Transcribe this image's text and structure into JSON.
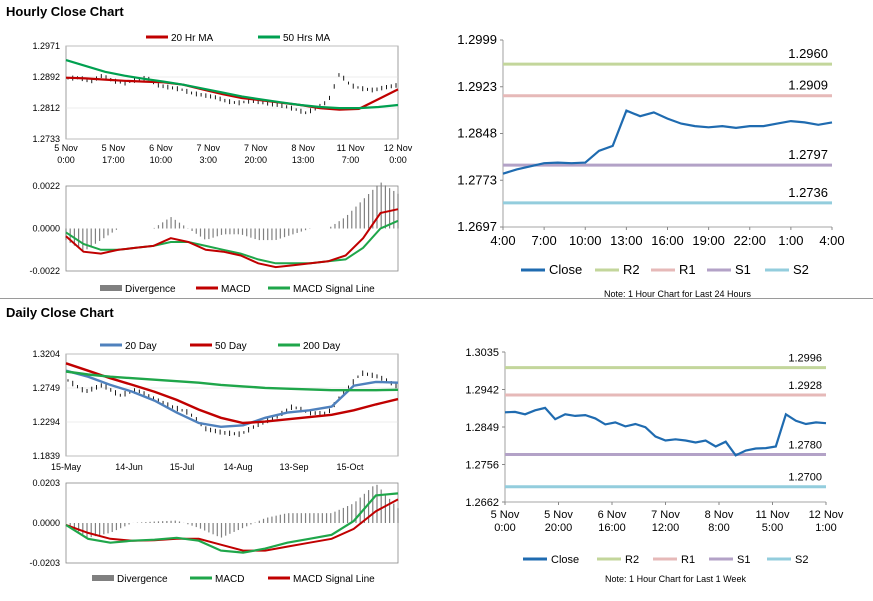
{
  "sections": {
    "hourly_title": "Hourly Close Chart",
    "daily_title": "Daily Close Chart"
  },
  "colors": {
    "close": "#1f6bb0",
    "r2": "#c3d69b",
    "r1": "#e6b9b8",
    "s1": "#b3a2c7",
    "s2": "#93cddd",
    "ma20": "#c00000",
    "ma50": "#00a050",
    "ma200": "#1fa64a",
    "day20": "#4f81bd",
    "macd_red": "#c00000",
    "macd_green": "#1fa64a",
    "bar": "#808080"
  },
  "chart_data": [
    {
      "id": "hourly_price",
      "type": "line",
      "xlabels": [
        [
          "5 Nov",
          "0:00"
        ],
        [
          "5 Nov",
          "17:00"
        ],
        [
          "6 Nov",
          "10:00"
        ],
        [
          "7 Nov",
          "3:00"
        ],
        [
          "7 Nov",
          "20:00"
        ],
        [
          "8 Nov",
          "13:00"
        ],
        [
          "11 Nov",
          "7:00"
        ],
        [
          "12 Nov",
          "0:00"
        ]
      ],
      "ylabels": [
        "1.2971",
        "1.2892",
        "1.2812",
        "1.2733"
      ],
      "ylim": [
        1.2733,
        1.2971
      ],
      "legend": [
        {
          "label": "20 Hr MA",
          "color": "#c00000"
        },
        {
          "label": "50 Hrs MA",
          "color": "#00a050"
        }
      ],
      "series": [
        {
          "name": "20 Hr MA",
          "color": "#c00000",
          "values": [
            1.289,
            1.2888,
            1.2885,
            1.2882,
            1.288,
            1.2878,
            1.2872,
            1.286,
            1.2848,
            1.2838,
            1.2832,
            1.2826,
            1.282,
            1.2812,
            1.2808,
            1.281,
            1.2835,
            1.286
          ]
        },
        {
          "name": "50 Hrs MA",
          "color": "#00a050",
          "values": [
            1.2935,
            1.292,
            1.2905,
            1.2895,
            1.2887,
            1.288,
            1.2872,
            1.2862,
            1.2852,
            1.2842,
            1.2834,
            1.2827,
            1.282,
            1.2815,
            1.2812,
            1.2812,
            1.2815,
            1.282
          ]
        }
      ],
      "ohlc_close": [
        1.2888,
        1.289,
        1.288,
        1.2895,
        1.2882,
        1.2876,
        1.2884,
        1.289,
        1.287,
        1.2865,
        1.286,
        1.285,
        1.2845,
        1.284,
        1.283,
        1.2825,
        1.283,
        1.2828,
        1.2822,
        1.2818,
        1.281,
        1.28,
        1.2812,
        1.283,
        1.29,
        1.287,
        1.2862,
        1.2858,
        1.2865,
        1.287
      ]
    },
    {
      "id": "hourly_macd",
      "type": "line",
      "ylabels": [
        "0.0022",
        "0.0000",
        "-0.0022"
      ],
      "ylim": [
        -0.0022,
        0.0022
      ],
      "legend": [
        {
          "label": "Divergence",
          "color": "#808080"
        },
        {
          "label": "MACD",
          "color": "#c00000"
        },
        {
          "label": "MACD Signal Line",
          "color": "#1fa64a"
        }
      ],
      "macd": [
        -0.0004,
        -0.0012,
        -0.0013,
        -0.0011,
        -0.001,
        -0.0009,
        -0.0005,
        -0.0007,
        -0.0011,
        -0.0012,
        -0.0014,
        -0.0018,
        -0.002,
        -0.0019,
        -0.0018,
        -0.0017,
        -0.0014,
        -0.0005,
        0.0008,
        0.001
      ],
      "signal": [
        -0.0002,
        -0.0008,
        -0.0011,
        -0.0011,
        -0.001,
        -0.0009,
        -0.0007,
        -0.0007,
        -0.0009,
        -0.0011,
        -0.0013,
        -0.0016,
        -0.0018,
        -0.0018,
        -0.0018,
        -0.0017,
        -0.0016,
        -0.001,
        0.0,
        0.0004
      ]
    },
    {
      "id": "hourly_24h",
      "type": "line",
      "xlabels": [
        "4:00",
        "7:00",
        "10:00",
        "13:00",
        "16:00",
        "19:00",
        "22:00",
        "1:00",
        "4:00"
      ],
      "ylabels": [
        "1.2999",
        "1.2923",
        "1.2848",
        "1.2773",
        "1.2697"
      ],
      "ylim": [
        1.2697,
        1.2999
      ],
      "levels": [
        {
          "name": "R2",
          "value": 1.296,
          "label": "1.2960",
          "color": "#c3d69b"
        },
        {
          "name": "R1",
          "value": 1.2909,
          "label": "1.2909",
          "color": "#e6b9b8"
        },
        {
          "name": "S1",
          "value": 1.2797,
          "label": "1.2797",
          "color": "#b3a2c7"
        },
        {
          "name": "S2",
          "value": 1.2736,
          "label": "1.2736",
          "color": "#93cddd"
        }
      ],
      "close": [
        1.2783,
        1.279,
        1.2795,
        1.28,
        1.2801,
        1.28,
        1.2801,
        1.282,
        1.2828,
        1.2885,
        1.2876,
        1.2882,
        1.2872,
        1.2864,
        1.286,
        1.2858,
        1.286,
        1.2857,
        1.286,
        1.286,
        1.2864,
        1.2868,
        1.2866,
        1.2862,
        1.2866
      ],
      "legend": [
        "Close",
        "R2",
        "R1",
        "S1",
        "S2"
      ],
      "note": "Note: 1 Hour Chart for Last 24 Hours"
    },
    {
      "id": "daily_price",
      "type": "line",
      "xlabels": [
        "15-May",
        "14-Jun",
        "15-Jul",
        "14-Aug",
        "13-Sep",
        "15-Oct"
      ],
      "ylabels": [
        "1.3204",
        "1.2749",
        "1.2294",
        "1.1839"
      ],
      "ylim": [
        1.1839,
        1.3204
      ],
      "legend": [
        {
          "label": "20 Day",
          "color": "#4f81bd"
        },
        {
          "label": "50 Day",
          "color": "#c00000"
        },
        {
          "label": "200 Day",
          "color": "#1fa64a"
        }
      ],
      "series": [
        {
          "name": "20 Day",
          "color": "#4f81bd",
          "values": [
            1.298,
            1.29,
            1.279,
            1.27,
            1.258,
            1.242,
            1.228,
            1.223,
            1.225,
            1.235,
            1.242,
            1.245,
            1.25,
            1.278,
            1.283,
            1.282
          ]
        },
        {
          "name": "50 Day",
          "color": "#c00000",
          "values": [
            1.308,
            1.298,
            1.288,
            1.279,
            1.27,
            1.259,
            1.246,
            1.235,
            1.228,
            1.23,
            1.233,
            1.236,
            1.239,
            1.245,
            1.253,
            1.26
          ]
        },
        {
          "name": "200 Day",
          "color": "#1fa64a",
          "values": [
            1.297,
            1.293,
            1.29,
            1.288,
            1.286,
            1.284,
            1.282,
            1.279,
            1.277,
            1.275,
            1.274,
            1.273,
            1.272,
            1.272,
            1.272,
            1.2725
          ]
        }
      ],
      "ohlc_close": [
        1.285,
        1.27,
        1.279,
        1.265,
        1.272,
        1.26,
        1.25,
        1.242,
        1.22,
        1.215,
        1.213,
        1.226,
        1.235,
        1.25,
        1.242,
        1.24,
        1.27,
        1.295,
        1.29,
        1.278
      ]
    },
    {
      "id": "daily_macd",
      "type": "line",
      "ylabels": [
        "0.0203",
        "0.0000",
        "-0.0203"
      ],
      "ylim": [
        -0.0203,
        0.0203
      ],
      "legend": [
        {
          "label": "Divergence",
          "color": "#808080"
        },
        {
          "label": "MACD",
          "color": "#1fa64a"
        },
        {
          "label": "MACD Signal Line",
          "color": "#c00000"
        }
      ],
      "macd": [
        -0.001,
        -0.008,
        -0.01,
        -0.009,
        -0.0085,
        -0.0075,
        -0.009,
        -0.014,
        -0.015,
        -0.013,
        -0.01,
        -0.008,
        -0.006,
        0.001,
        0.014,
        0.015
      ],
      "signal": [
        -0.001,
        -0.005,
        -0.008,
        -0.009,
        -0.0088,
        -0.008,
        -0.008,
        -0.011,
        -0.014,
        -0.014,
        -0.012,
        -0.01,
        -0.008,
        -0.003,
        0.006,
        0.012
      ]
    },
    {
      "id": "weekly_hourly",
      "type": "line",
      "xlabels": [
        [
          "5 Nov",
          "0:00"
        ],
        [
          "5 Nov",
          "20:00"
        ],
        [
          "6 Nov",
          "16:00"
        ],
        [
          "7 Nov",
          "12:00"
        ],
        [
          "8 Nov",
          "8:00"
        ],
        [
          "11 Nov",
          "5:00"
        ],
        [
          "12 Nov",
          "1:00"
        ]
      ],
      "ylabels": [
        "1.3035",
        "1.2942",
        "1.2849",
        "1.2756",
        "1.2662"
      ],
      "ylim": [
        1.2662,
        1.3035
      ],
      "levels": [
        {
          "name": "R2",
          "value": 1.2996,
          "label": "1.2996",
          "color": "#c3d69b"
        },
        {
          "name": "R1",
          "value": 1.2928,
          "label": "1.2928",
          "color": "#e6b9b8"
        },
        {
          "name": "S1",
          "value": 1.278,
          "label": "1.2780",
          "color": "#b3a2c7"
        },
        {
          "name": "S2",
          "value": 1.27,
          "label": "1.2700",
          "color": "#93cddd"
        }
      ],
      "close": [
        1.2885,
        1.2886,
        1.288,
        1.289,
        1.2896,
        1.2868,
        1.288,
        1.2876,
        1.2878,
        1.287,
        1.2855,
        1.286,
        1.285,
        1.2856,
        1.2848,
        1.2825,
        1.2815,
        1.2818,
        1.2815,
        1.281,
        1.2815,
        1.28,
        1.2812,
        1.2778,
        1.279,
        1.2795,
        1.2796,
        1.28,
        1.288,
        1.2864,
        1.2856,
        1.286,
        1.2858
      ],
      "legend": [
        "Close",
        "R2",
        "R1",
        "S1",
        "S2"
      ],
      "note": "Note: 1 Hour Chart for Last 1 Week"
    }
  ]
}
